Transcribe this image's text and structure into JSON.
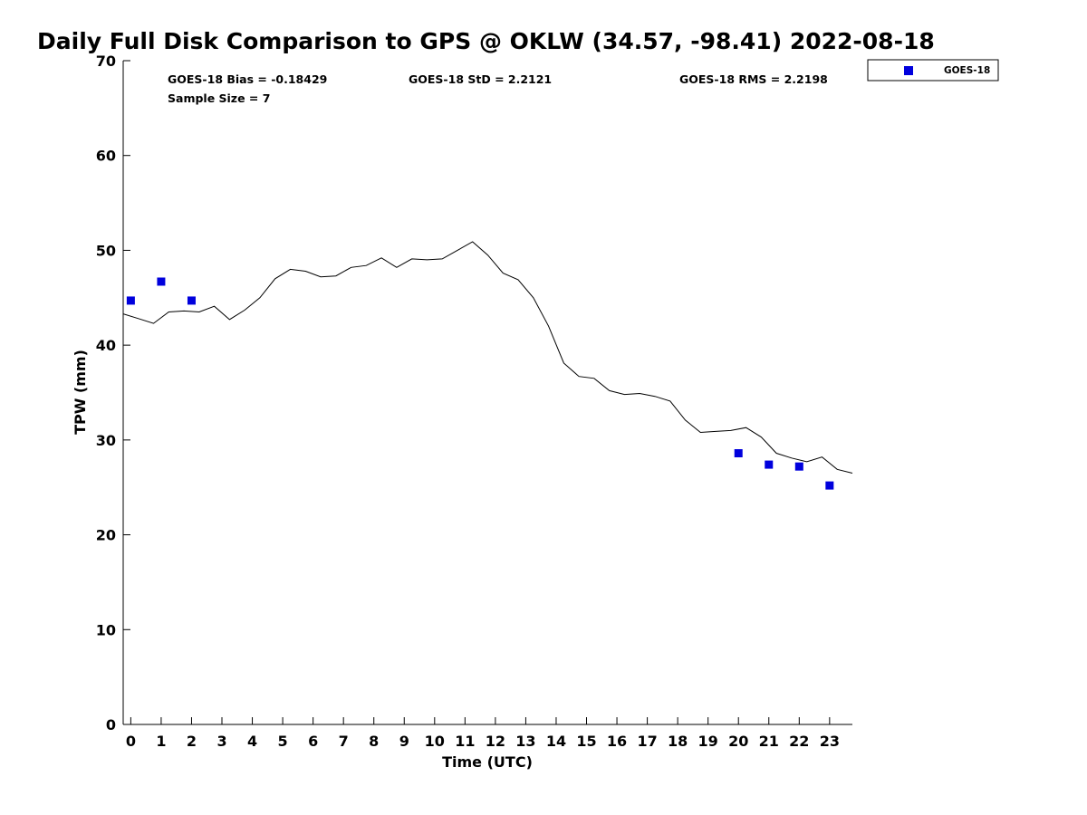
{
  "title": "Daily Full Disk Comparison to GPS @ OKLW (34.57, -98.41) 2022-08-18",
  "stats": {
    "bias": "GOES-18 Bias = -0.18429",
    "std": "GOES-18 StD = 2.2121",
    "rms": "GOES-18 RMS = 2.2198",
    "sample": "Sample Size = 7"
  },
  "legend": {
    "label": "GOES-18",
    "position": "outside-top-right"
  },
  "colors": {
    "goes": "#0000dd",
    "gps_line": "#000000"
  },
  "chart_data": {
    "type": "scatter",
    "title": "Daily Full Disk Comparison to GPS @ OKLW (34.57, -98.41) 2022-08-18",
    "xlabel": "Time (UTC)",
    "ylabel": "TPW (mm)",
    "xlim": [
      -0.25,
      23.75
    ],
    "ylim": [
      0,
      70
    ],
    "xticks": [
      0,
      1,
      2,
      3,
      4,
      5,
      6,
      7,
      8,
      9,
      10,
      11,
      12,
      13,
      14,
      15,
      16,
      17,
      18,
      19,
      20,
      21,
      22,
      23
    ],
    "yticks": [
      0,
      10,
      20,
      30,
      40,
      50,
      60,
      70
    ],
    "grid": false,
    "series": [
      {
        "name": "GOES-18",
        "kind": "markers",
        "marker": "square",
        "color": "#0000dd",
        "x": [
          0,
          1,
          2,
          20,
          21,
          22,
          23
        ],
        "y": [
          44.7,
          46.7,
          44.7,
          28.6,
          27.4,
          27.2,
          25.2
        ]
      },
      {
        "kind": "line",
        "color": "#000000",
        "x": [
          -0.25,
          0.25,
          0.75,
          1.25,
          1.75,
          2.25,
          2.75,
          3.25,
          3.75,
          4.25,
          4.75,
          5.25,
          5.75,
          6.25,
          6.75,
          7.25,
          7.75,
          8.25,
          8.75,
          9.25,
          9.75,
          10.25,
          10.75,
          11.25,
          11.75,
          12.25,
          12.75,
          13.25,
          13.75,
          14.25,
          14.75,
          15.25,
          15.75,
          16.25,
          16.75,
          17.25,
          17.75,
          18.25,
          18.75,
          19.25,
          19.75,
          20.25,
          20.75,
          21.25,
          21.75,
          22.25,
          22.75,
          23.25,
          23.75
        ],
        "y": [
          43.3,
          42.8,
          42.3,
          43.5,
          43.6,
          43.5,
          44.1,
          42.7,
          43.7,
          45.0,
          47.0,
          48.0,
          47.8,
          47.2,
          47.3,
          48.2,
          48.4,
          49.2,
          48.2,
          49.1,
          49.0,
          49.1,
          50.0,
          50.9,
          49.5,
          47.6,
          46.9,
          45.0,
          42.0,
          38.1,
          36.7,
          36.5,
          35.2,
          34.8,
          34.9,
          34.6,
          34.1,
          32.1,
          30.8,
          30.9,
          31.0,
          31.3,
          30.3,
          28.6,
          28.1,
          27.7,
          28.2,
          26.9,
          26.5
        ]
      }
    ]
  }
}
